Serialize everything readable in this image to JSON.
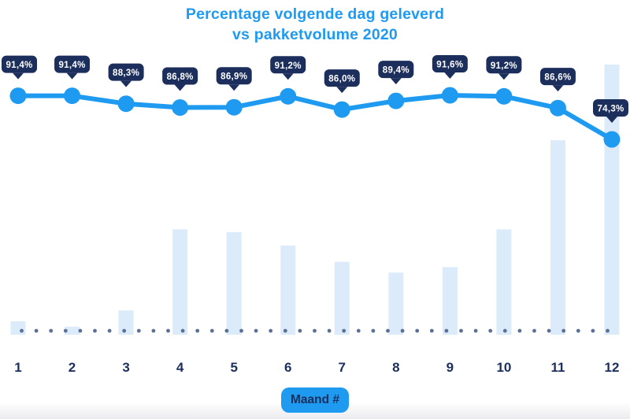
{
  "title": {
    "line1": "Percentage volgende dag geleverd",
    "line2": "vs pakketvolume 2020"
  },
  "x_axis_label": "Maand #",
  "chart_data": {
    "type": "line+bar combo",
    "title": "Percentage volgende dag geleverd vs pakketvolume 2020",
    "categories": [
      "1",
      "2",
      "3",
      "4",
      "5",
      "6",
      "7",
      "8",
      "9",
      "10",
      "11",
      "12"
    ],
    "xlabel": "Maand #",
    "legend": "none",
    "grid": "none (dotted baseline row only)",
    "series": [
      {
        "name": "Percentage volgende dag geleverd",
        "type": "line",
        "unit": "%",
        "ylim_est": [
          70,
          95
        ],
        "values": [
          91.4,
          91.4,
          88.3,
          86.8,
          86.9,
          91.2,
          86.0,
          89.4,
          91.6,
          91.2,
          86.6,
          74.3
        ],
        "labels": [
          "91,4%",
          "91,4%",
          "88,3%",
          "86,8%",
          "86,9%",
          "91,2%",
          "86,0%",
          "89,4%",
          "91,6%",
          "91,2%",
          "86,6%",
          "74,3%"
        ]
      },
      {
        "name": "Pakketvolume 2020",
        "type": "bar",
        "unit": "relative volume, % of December (estimated from bar heights; no value axis shown)",
        "values": [
          5,
          3,
          9,
          39,
          38,
          33,
          27,
          23,
          25,
          39,
          72,
          100
        ]
      }
    ]
  },
  "colors": {
    "accent_blue": "#1E9AF0",
    "navy": "#1C2F5C",
    "bar_fill": "#DCEBFA",
    "dot_slate": "#5C6F95",
    "label_text": "#FFFFFF",
    "background": "#FFFFFF"
  }
}
